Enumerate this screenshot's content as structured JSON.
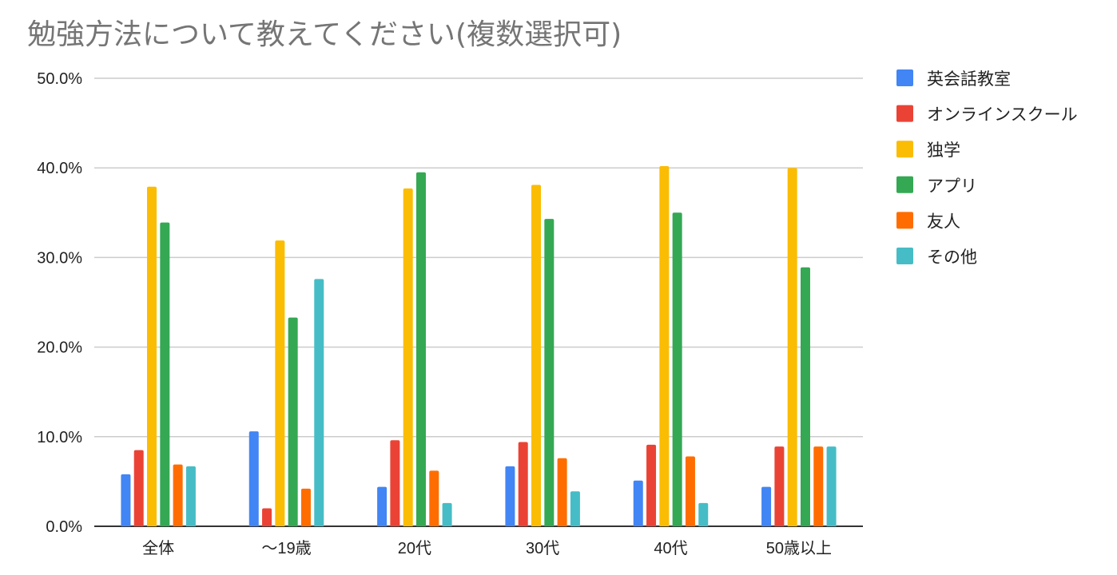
{
  "chart_data": {
    "type": "bar",
    "title": "勉強方法について教えてください(複数選択可)",
    "xlabel": "",
    "ylabel": "",
    "ylim": [
      0,
      50
    ],
    "y_ticks": [
      "0.0%",
      "10.0%",
      "20.0%",
      "30.0%",
      "40.0%",
      "50.0%"
    ],
    "grid": true,
    "legend_position": "right",
    "categories": [
      "全体",
      "〜19歳",
      "20代",
      "30代",
      "40代",
      "50歳以上"
    ],
    "series": [
      {
        "name": "英会話教室",
        "color": "#4285F4",
        "values": [
          5.8,
          10.6,
          4.4,
          6.7,
          5.1,
          4.4
        ]
      },
      {
        "name": "オンラインスクール",
        "color": "#EA4335",
        "values": [
          8.5,
          2.0,
          9.6,
          9.4,
          9.1,
          8.9
        ]
      },
      {
        "name": "独学",
        "color": "#FBBC04",
        "values": [
          37.9,
          31.9,
          37.7,
          38.1,
          40.2,
          40.0
        ]
      },
      {
        "name": "アプリ",
        "color": "#34A853",
        "values": [
          33.9,
          23.3,
          39.5,
          34.3,
          35.0,
          28.9
        ]
      },
      {
        "name": "友人",
        "color": "#FF6D01",
        "values": [
          6.9,
          4.2,
          6.2,
          7.6,
          7.8,
          8.9
        ]
      },
      {
        "name": "その他",
        "color": "#46BDC6",
        "values": [
          6.7,
          27.6,
          2.6,
          3.9,
          2.6,
          8.9
        ]
      }
    ]
  }
}
